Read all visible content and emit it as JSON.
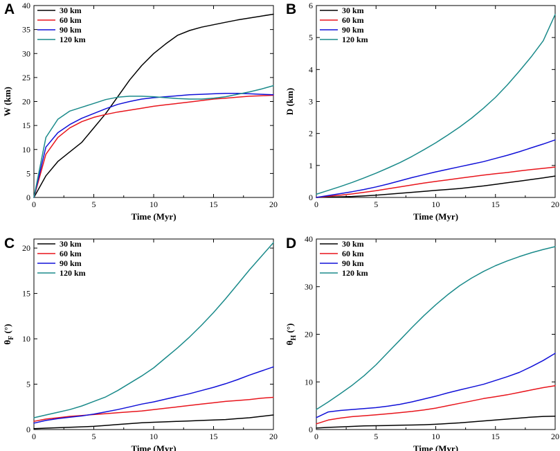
{
  "colors": {
    "30 km": "#000000",
    "60 km": "#e8141b",
    "90 km": "#1010d8",
    "120 km": "#1a8a8a"
  },
  "chart_data": [
    {
      "panel": "A",
      "type": "line",
      "xlabel": "Time (Myr)",
      "ylabel": "W (km)",
      "ylabel_sub": "",
      "xlim": [
        0,
        20
      ],
      "ylim": [
        0,
        40
      ],
      "xticks": [
        0,
        5,
        10,
        15,
        20
      ],
      "yticks": [
        0,
        5,
        10,
        15,
        20,
        25,
        30,
        35,
        40
      ],
      "x": [
        0,
        1,
        2,
        3,
        4,
        5,
        6,
        7,
        8,
        9,
        10,
        11,
        12,
        13,
        14,
        15,
        16,
        17,
        18,
        19,
        20
      ],
      "series": [
        {
          "name": "30 km",
          "values": [
            0,
            4.5,
            7.5,
            9.5,
            11.5,
            14.5,
            17.5,
            21,
            24.5,
            27.5,
            30,
            32,
            33.8,
            34.8,
            35.5,
            36,
            36.5,
            37,
            37.4,
            37.8,
            38.2
          ]
        },
        {
          "name": "60 km",
          "values": [
            0,
            9,
            12.5,
            14.5,
            15.8,
            16.7,
            17.3,
            17.8,
            18.2,
            18.6,
            19,
            19.3,
            19.6,
            19.9,
            20.2,
            20.5,
            20.7,
            20.9,
            21.1,
            21.2,
            21.3
          ]
        },
        {
          "name": "90 km",
          "values": [
            0,
            10.5,
            13.5,
            15.2,
            16.5,
            17.5,
            18.5,
            19.4,
            20,
            20.5,
            20.8,
            21,
            21.2,
            21.4,
            21.5,
            21.6,
            21.7,
            21.7,
            21.6,
            21.5,
            21.4
          ]
        },
        {
          "name": "120 km",
          "values": [
            0,
            12.5,
            16.3,
            18,
            18.8,
            19.6,
            20.4,
            20.9,
            21.1,
            21.1,
            21,
            20.8,
            20.6,
            20.5,
            20.5,
            20.7,
            21,
            21.5,
            22,
            22.6,
            23.3
          ]
        }
      ]
    },
    {
      "panel": "B",
      "type": "line",
      "xlabel": "Time (Myr)",
      "ylabel": "D (km)",
      "ylabel_sub": "",
      "xlim": [
        0,
        20
      ],
      "ylim": [
        0,
        6
      ],
      "xticks": [
        0,
        5,
        10,
        15,
        20
      ],
      "yticks": [
        0,
        1,
        2,
        3,
        4,
        5,
        6
      ],
      "x": [
        0,
        1,
        2,
        3,
        4,
        5,
        6,
        7,
        8,
        9,
        10,
        11,
        12,
        13,
        14,
        15,
        16,
        17,
        18,
        19,
        20
      ],
      "series": [
        {
          "name": "30 km",
          "values": [
            0,
            0.01,
            0.02,
            0.03,
            0.05,
            0.07,
            0.1,
            0.13,
            0.16,
            0.19,
            0.22,
            0.25,
            0.28,
            0.32,
            0.36,
            0.41,
            0.46,
            0.51,
            0.56,
            0.61,
            0.67
          ]
        },
        {
          "name": "60 km",
          "values": [
            0,
            0.04,
            0.07,
            0.11,
            0.16,
            0.21,
            0.27,
            0.33,
            0.39,
            0.45,
            0.5,
            0.55,
            0.6,
            0.65,
            0.7,
            0.74,
            0.78,
            0.83,
            0.87,
            0.91,
            0.95
          ]
        },
        {
          "name": "90 km",
          "values": [
            0,
            0.06,
            0.12,
            0.18,
            0.25,
            0.33,
            0.42,
            0.52,
            0.62,
            0.71,
            0.8,
            0.88,
            0.96,
            1.04,
            1.12,
            1.22,
            1.32,
            1.43,
            1.55,
            1.67,
            1.8
          ]
        },
        {
          "name": "120 km",
          "values": [
            0.1,
            0.22,
            0.34,
            0.47,
            0.61,
            0.76,
            0.92,
            1.09,
            1.28,
            1.49,
            1.71,
            1.95,
            2.2,
            2.48,
            2.79,
            3.13,
            3.52,
            3.95,
            4.4,
            4.9,
            5.72
          ]
        }
      ]
    },
    {
      "panel": "C",
      "type": "line",
      "xlabel": "Time (Myr)",
      "ylabel": "θ",
      "ylabel_sub": "F",
      "ylabel_suffix": " (°)",
      "xlim": [
        0,
        20
      ],
      "ylim": [
        0,
        21
      ],
      "xticks": [
        0,
        5,
        10,
        15,
        20
      ],
      "yticks": [
        0,
        5,
        10,
        15,
        20
      ],
      "x": [
        0,
        1,
        2,
        3,
        4,
        5,
        6,
        7,
        8,
        9,
        10,
        11,
        12,
        13,
        14,
        15,
        16,
        17,
        18,
        19,
        20
      ],
      "series": [
        {
          "name": "30 km",
          "values": [
            0.1,
            0.15,
            0.2,
            0.25,
            0.3,
            0.35,
            0.45,
            0.55,
            0.65,
            0.75,
            0.8,
            0.85,
            0.9,
            0.95,
            1,
            1.05,
            1.1,
            1.2,
            1.3,
            1.45,
            1.6
          ]
        },
        {
          "name": "60 km",
          "values": [
            0.9,
            1.15,
            1.3,
            1.45,
            1.55,
            1.65,
            1.75,
            1.85,
            1.95,
            2.05,
            2.2,
            2.35,
            2.5,
            2.65,
            2.8,
            2.95,
            3.1,
            3.2,
            3.3,
            3.45,
            3.55
          ]
        },
        {
          "name": "90 km",
          "values": [
            0.7,
            1,
            1.2,
            1.35,
            1.5,
            1.7,
            1.95,
            2.2,
            2.5,
            2.8,
            3.05,
            3.35,
            3.65,
            3.95,
            4.3,
            4.65,
            5.05,
            5.5,
            6,
            6.45,
            6.9
          ]
        },
        {
          "name": "120 km",
          "values": [
            1.3,
            1.6,
            1.9,
            2.2,
            2.6,
            3.1,
            3.6,
            4.3,
            5.1,
            5.9,
            6.8,
            7.9,
            9,
            10.2,
            11.5,
            12.9,
            14.4,
            16,
            17.6,
            19.1,
            20.6
          ]
        }
      ]
    },
    {
      "panel": "D",
      "type": "line",
      "xlabel": "Time (Myr)",
      "ylabel": "θ",
      "ylabel_sub": "H",
      "ylabel_suffix": " (°)",
      "xlim": [
        0,
        20
      ],
      "ylim": [
        0,
        40
      ],
      "xticks": [
        0,
        5,
        10,
        15,
        20
      ],
      "yticks": [
        0,
        10,
        20,
        30,
        40
      ],
      "x": [
        0,
        1,
        2,
        3,
        4,
        5,
        6,
        7,
        8,
        9,
        10,
        11,
        12,
        13,
        14,
        15,
        16,
        17,
        18,
        19,
        20
      ],
      "series": [
        {
          "name": "30 km",
          "values": [
            0.3,
            0.45,
            0.55,
            0.65,
            0.75,
            0.8,
            0.85,
            0.9,
            0.95,
            1,
            1.1,
            1.25,
            1.4,
            1.6,
            1.8,
            2,
            2.2,
            2.4,
            2.6,
            2.75,
            2.8
          ]
        },
        {
          "name": "60 km",
          "values": [
            1.2,
            2,
            2.4,
            2.7,
            2.9,
            3.1,
            3.3,
            3.55,
            3.8,
            4.1,
            4.5,
            5,
            5.5,
            6,
            6.5,
            6.9,
            7.3,
            7.8,
            8.3,
            8.8,
            9.2
          ]
        },
        {
          "name": "90 km",
          "values": [
            2.5,
            3.7,
            4,
            4.2,
            4.4,
            4.6,
            4.9,
            5.3,
            5.8,
            6.4,
            7,
            7.7,
            8.3,
            8.9,
            9.5,
            10.3,
            11.1,
            12,
            13.2,
            14.5,
            16
          ]
        },
        {
          "name": "120 km",
          "values": [
            4.2,
            5.8,
            7.5,
            9.3,
            11.3,
            13.6,
            16.2,
            18.8,
            21.4,
            23.9,
            26.2,
            28.3,
            30.2,
            31.8,
            33.2,
            34.4,
            35.4,
            36.3,
            37.1,
            37.8,
            38.4
          ]
        }
      ]
    }
  ]
}
